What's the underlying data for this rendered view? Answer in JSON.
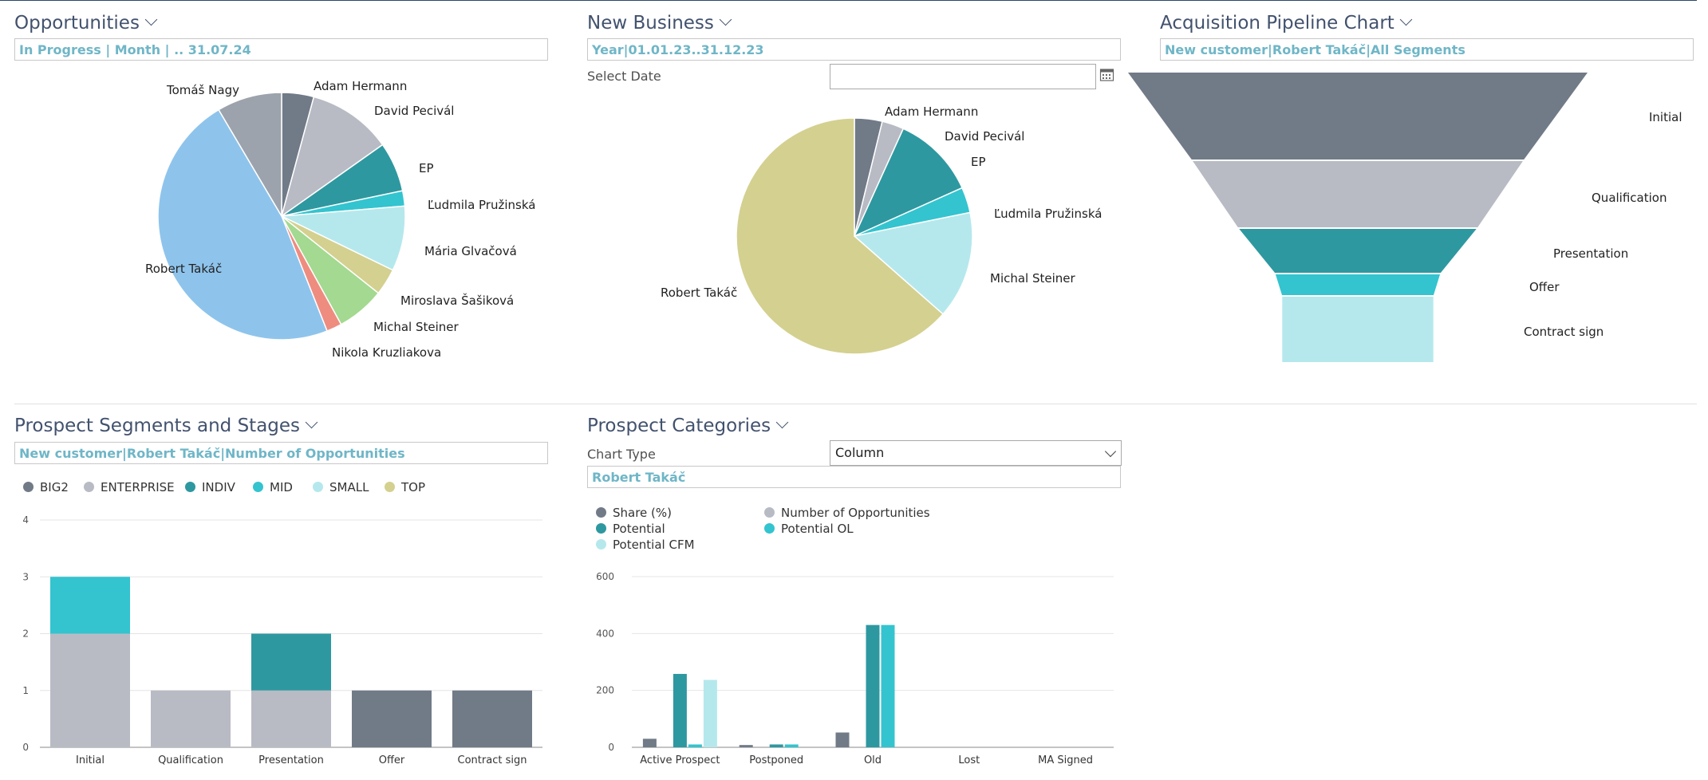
{
  "panels": {
    "opportunities": {
      "title": "Opportunities",
      "filter": "In Progress | Month |  .. 31.07.24"
    },
    "new_business": {
      "title": "New Business",
      "filter": "Year|01.01.23..31.12.23",
      "select_date_label": "Select Date",
      "select_date_value": ""
    },
    "acquisition": {
      "title": "Acquisition Pipeline Chart",
      "filter": "New customer|Robert Takáč|All Segments"
    },
    "segments": {
      "title": "Prospect Segments and Stages",
      "filter": "New customer|Robert Takáč|Number of Opportunities"
    },
    "categories": {
      "title": "Prospect Categories",
      "chart_type_label": "Chart Type",
      "chart_type_value": "Column",
      "filter": "Robert Takáč"
    }
  },
  "colors": {
    "slate": "#717b87",
    "light_gray": "#b8bbc4",
    "teal": "#2e98a0",
    "cyan": "#33c4cf",
    "pale_cyan": "#b5e8ec",
    "khaki": "#d4d08f",
    "light_green": "#a3d990",
    "salmon": "#ee8c80",
    "sky": "#8ec4ec",
    "gray": "#9ca3ac",
    "accent_text": "#6fb6c7"
  },
  "chart_data": [
    {
      "id": "opportunities_pie",
      "type": "pie",
      "slices": [
        {
          "label": "Adam Hermann",
          "value": 4.2,
          "color": "#717b87"
        },
        {
          "label": "David Pecivál",
          "value": 11.0,
          "color": "#b8bbc4"
        },
        {
          "label": "EP",
          "value": 6.5,
          "color": "#2e98a0"
        },
        {
          "label": "Ľudmila Pružinská",
          "value": 2.0,
          "color": "#33c4cf"
        },
        {
          "label": "Mária Glvačová",
          "value": 8.5,
          "color": "#b5e8ec"
        },
        {
          "label": "Miroslava Šašiková",
          "value": 3.5,
          "color": "#d4d08f"
        },
        {
          "label": "Michal Steiner",
          "value": 6.3,
          "color": "#a3d990"
        },
        {
          "label": "Nikola Kruzliakova",
          "value": 2.0,
          "color": "#ee8c80"
        },
        {
          "label": "Robert Takáč",
          "value": 47.5,
          "color": "#8ec4ec"
        },
        {
          "label": "Tomáš Nagy",
          "value": 8.5,
          "color": "#9ca3ac"
        }
      ]
    },
    {
      "id": "new_business_pie",
      "type": "pie",
      "slices": [
        {
          "label": "Adam Hermann",
          "value": 3.8,
          "color": "#717b87"
        },
        {
          "label": "David Pecivál",
          "value": 3.0,
          "color": "#b8bbc4"
        },
        {
          "label": "EP",
          "value": 11.5,
          "color": "#2e98a0"
        },
        {
          "label": "Ľudmila Pružinská",
          "value": 3.5,
          "color": "#33c4cf"
        },
        {
          "label": "Michal Steiner",
          "value": 14.7,
          "color": "#b5e8ec"
        },
        {
          "label": "Robert Takáč",
          "value": 63.5,
          "color": "#d4d08f"
        }
      ]
    },
    {
      "id": "acquisition_funnel",
      "type": "funnel",
      "stages": [
        {
          "label": "Initial",
          "value": 100,
          "color": "#717b87"
        },
        {
          "label": "Qualification",
          "value": 72,
          "color": "#b8bbc4"
        },
        {
          "label": "Presentation",
          "value": 52,
          "color": "#2e98a0"
        },
        {
          "label": "Offer",
          "value": 36,
          "color": "#33c4cf"
        },
        {
          "label": "Contract sign",
          "value": 33,
          "color": "#b5e8ec"
        }
      ]
    },
    {
      "id": "segments_stacked",
      "type": "bar",
      "stacked": true,
      "categories": [
        "Initial",
        "Qualification",
        "Presentation",
        "Offer",
        "Contract sign"
      ],
      "legend": [
        {
          "name": "BIG2",
          "color": "#717b87"
        },
        {
          "name": "ENTERPRISE",
          "color": "#b8bbc4"
        },
        {
          "name": "INDIV",
          "color": "#2e98a0"
        },
        {
          "name": "MID",
          "color": "#33c4cf"
        },
        {
          "name": "SMALL",
          "color": "#b5e8ec"
        },
        {
          "name": "TOP",
          "color": "#d4d08f"
        }
      ],
      "series": [
        {
          "name": "BIG2",
          "color": "#717b87",
          "values": [
            0,
            0,
            0,
            1,
            1
          ]
        },
        {
          "name": "ENTERPRISE",
          "color": "#b8bbc4",
          "values": [
            2,
            1,
            1,
            0,
            0
          ]
        },
        {
          "name": "INDIV",
          "color": "#2e98a0",
          "values": [
            0,
            0,
            1,
            0,
            0
          ]
        },
        {
          "name": "MID",
          "color": "#33c4cf",
          "values": [
            1,
            0,
            0,
            0,
            0
          ]
        },
        {
          "name": "SMALL",
          "color": "#b5e8ec",
          "values": [
            0,
            0,
            0,
            0,
            0
          ]
        },
        {
          "name": "TOP",
          "color": "#d4d08f",
          "values": [
            0,
            0,
            0,
            0,
            0
          ]
        }
      ],
      "ylim": [
        0,
        4
      ],
      "yticks": [
        "0",
        "1",
        "2",
        "3",
        "4"
      ],
      "grid": true,
      "legend_position": "top-left"
    },
    {
      "id": "categories_column",
      "type": "bar",
      "categories": [
        "Active Prospect",
        "Postponed",
        "Old",
        "Lost",
        "MA Signed"
      ],
      "legend": [
        {
          "name": "Share (%)",
          "color": "#717b87"
        },
        {
          "name": "Number of Opportunities",
          "color": "#b8bbc4"
        },
        {
          "name": "Potential",
          "color": "#2e98a0"
        },
        {
          "name": "Potential OL",
          "color": "#33c4cf"
        },
        {
          "name": "Potential CFM",
          "color": "#b5e8ec"
        }
      ],
      "series": [
        {
          "name": "Share (%)",
          "color": "#717b87",
          "values": [
            30,
            8,
            52,
            0,
            0
          ]
        },
        {
          "name": "Number of Opportunities",
          "color": "#b8bbc4",
          "values": [
            0,
            0,
            0,
            0,
            0
          ]
        },
        {
          "name": "Potential",
          "color": "#2e98a0",
          "values": [
            258,
            10,
            430,
            0,
            0
          ]
        },
        {
          "name": "Potential OL",
          "color": "#33c4cf",
          "values": [
            10,
            10,
            430,
            0,
            0
          ]
        },
        {
          "name": "Potential CFM",
          "color": "#b5e8ec",
          "values": [
            237,
            0,
            0,
            0,
            0
          ]
        }
      ],
      "ylim": [
        0,
        600
      ],
      "yticks": [
        "0",
        "200",
        "400",
        "600"
      ],
      "grid": true,
      "legend_position": "top-left"
    }
  ]
}
